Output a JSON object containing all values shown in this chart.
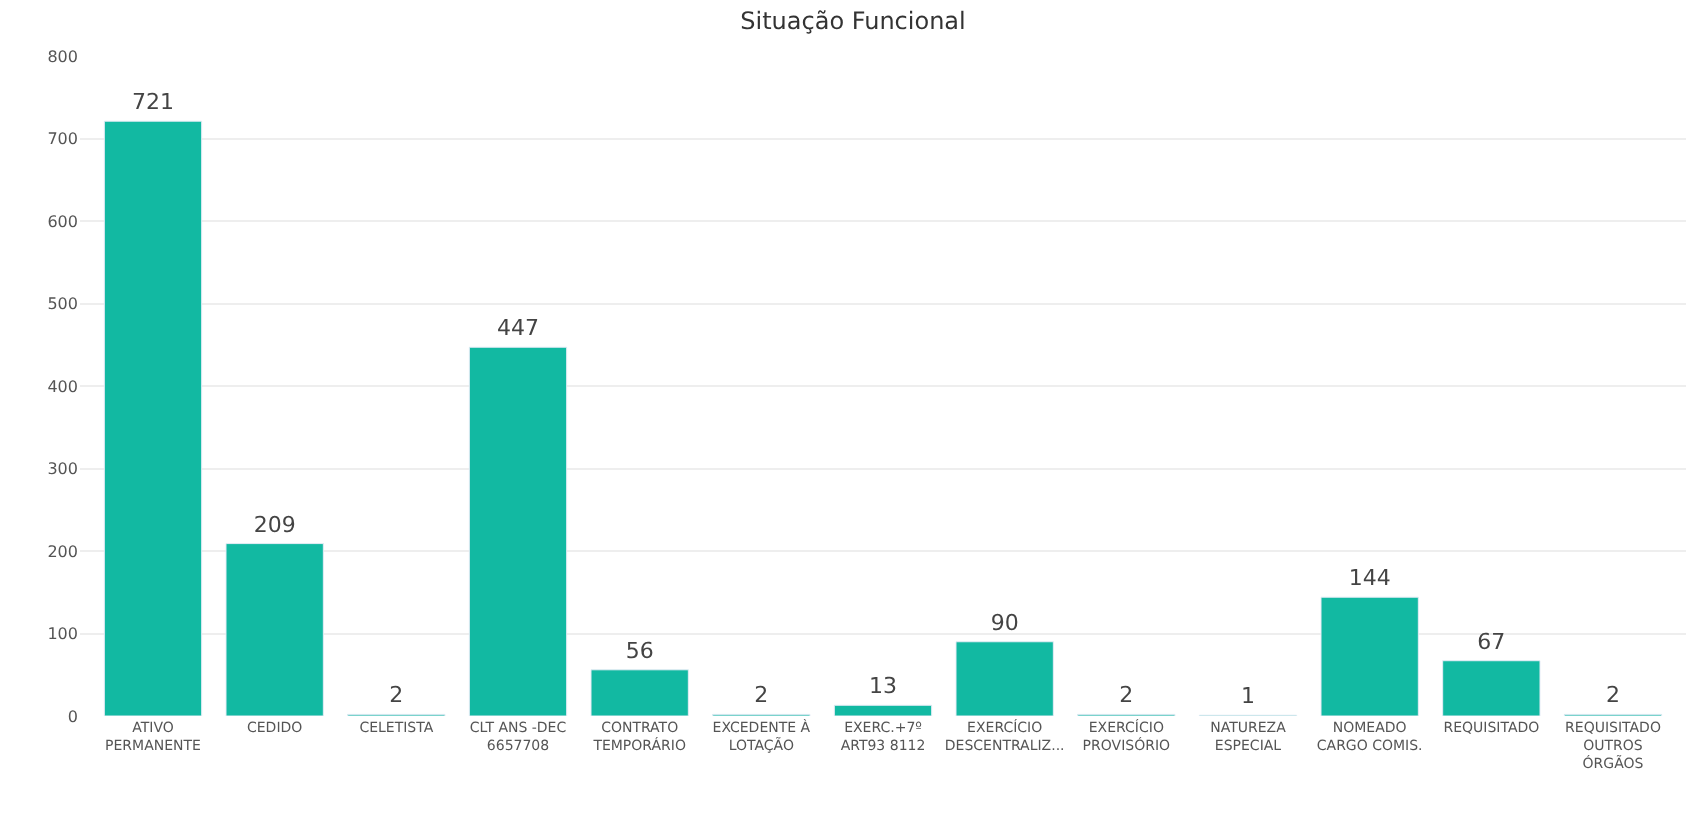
{
  "chart_data": {
    "type": "bar",
    "title": "Situação Funcional",
    "categories": [
      "ATIVO PERMANENTE",
      "CEDIDO",
      "CELETISTA",
      "CLT ANS -DEC 6657708",
      "CONTRATO TEMPORÁRIO",
      "EXCEDENTE À LOTAÇÃO",
      "EXERC.+7º ART93 8112",
      "EXERCÍCIO DESCENTRALIZ...",
      "EXERCÍCIO PROVISÓRIO",
      "NATUREZA ESPECIAL",
      "NOMEADO CARGO COMIS.",
      "REQUISITADO",
      "REQUISITADO OUTROS ÓRGÃOS"
    ],
    "values": [
      721,
      209,
      2,
      447,
      56,
      2,
      13,
      90,
      2,
      1,
      144,
      67,
      2
    ],
    "color": "#12b9a2",
    "ylim": [
      0,
      800
    ],
    "yticks": [
      0,
      100,
      200,
      300,
      400,
      500,
      600,
      700,
      800
    ],
    "grid": "y",
    "data_labels": true
  }
}
